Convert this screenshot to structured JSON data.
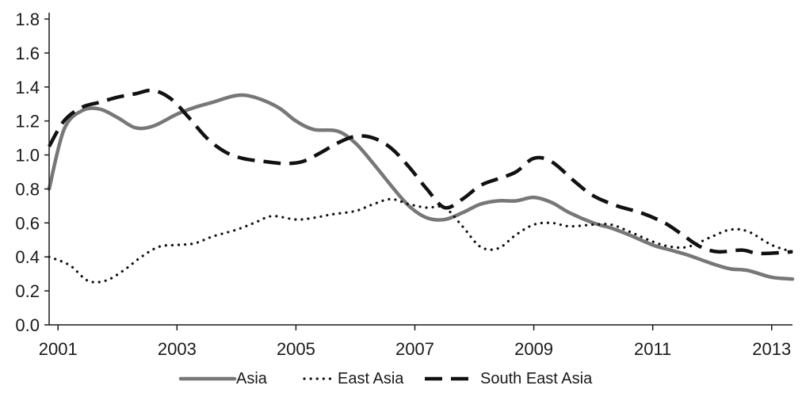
{
  "chart_data": {
    "type": "line",
    "title": "",
    "xlabel": "",
    "ylabel": "",
    "xlim": [
      2000.85,
      2013.35
    ],
    "ylim": [
      0,
      1.8
    ],
    "x_ticks": [
      2001,
      2003,
      2005,
      2007,
      2009,
      2011,
      2013
    ],
    "x_tick_labels": [
      "2001",
      "2003",
      "2005",
      "2007",
      "2009",
      "2011",
      "2013"
    ],
    "y_ticks": [
      0,
      0.2,
      0.4,
      0.6,
      0.8,
      1.0,
      1.2,
      1.4,
      1.6,
      1.8
    ],
    "y_tick_labels": [
      "0.0",
      "0.2",
      "0.4",
      "0.6",
      "0.8",
      "1.0",
      "1.2",
      "1.4",
      "1.6",
      "1.8"
    ],
    "grid": false,
    "legend_position": "bottom",
    "series": [
      {
        "name": "Asia",
        "color": "#777777",
        "style": "solid",
        "points": [
          [
            2000.85,
            0.8
          ],
          [
            2001.1,
            1.15
          ],
          [
            2001.4,
            1.26
          ],
          [
            2001.7,
            1.27
          ],
          [
            2002.0,
            1.22
          ],
          [
            2002.3,
            1.16
          ],
          [
            2002.6,
            1.17
          ],
          [
            2003.0,
            1.24
          ],
          [
            2003.3,
            1.28
          ],
          [
            2003.6,
            1.31
          ],
          [
            2004.0,
            1.35
          ],
          [
            2004.3,
            1.34
          ],
          [
            2004.7,
            1.28
          ],
          [
            2005.0,
            1.2
          ],
          [
            2005.3,
            1.15
          ],
          [
            2005.7,
            1.14
          ],
          [
            2006.0,
            1.07
          ],
          [
            2006.3,
            0.95
          ],
          [
            2006.6,
            0.82
          ],
          [
            2006.9,
            0.7
          ],
          [
            2007.2,
            0.63
          ],
          [
            2007.5,
            0.62
          ],
          [
            2007.8,
            0.66
          ],
          [
            2008.1,
            0.71
          ],
          [
            2008.4,
            0.73
          ],
          [
            2008.7,
            0.73
          ],
          [
            2009.0,
            0.75
          ],
          [
            2009.3,
            0.72
          ],
          [
            2009.6,
            0.66
          ],
          [
            2010.0,
            0.6
          ],
          [
            2010.3,
            0.57
          ],
          [
            2010.6,
            0.53
          ],
          [
            2011.0,
            0.47
          ],
          [
            2011.3,
            0.44
          ],
          [
            2011.6,
            0.41
          ],
          [
            2012.0,
            0.36
          ],
          [
            2012.3,
            0.33
          ],
          [
            2012.6,
            0.32
          ],
          [
            2013.0,
            0.28
          ],
          [
            2013.35,
            0.27
          ]
        ]
      },
      {
        "name": "East Asia",
        "color": "#111111",
        "style": "dotted",
        "points": [
          [
            2000.85,
            0.4
          ],
          [
            2001.2,
            0.35
          ],
          [
            2001.5,
            0.26
          ],
          [
            2001.8,
            0.26
          ],
          [
            2002.1,
            0.32
          ],
          [
            2002.4,
            0.4
          ],
          [
            2002.7,
            0.46
          ],
          [
            2003.0,
            0.47
          ],
          [
            2003.3,
            0.48
          ],
          [
            2003.6,
            0.52
          ],
          [
            2004.0,
            0.56
          ],
          [
            2004.3,
            0.6
          ],
          [
            2004.6,
            0.64
          ],
          [
            2005.0,
            0.62
          ],
          [
            2005.3,
            0.63
          ],
          [
            2005.6,
            0.65
          ],
          [
            2006.0,
            0.67
          ],
          [
            2006.3,
            0.71
          ],
          [
            2006.6,
            0.74
          ],
          [
            2006.9,
            0.71
          ],
          [
            2007.2,
            0.69
          ],
          [
            2007.5,
            0.69
          ],
          [
            2007.8,
            0.58
          ],
          [
            2008.1,
            0.46
          ],
          [
            2008.4,
            0.45
          ],
          [
            2008.7,
            0.53
          ],
          [
            2009.0,
            0.59
          ],
          [
            2009.3,
            0.6
          ],
          [
            2009.6,
            0.58
          ],
          [
            2010.0,
            0.59
          ],
          [
            2010.3,
            0.59
          ],
          [
            2010.6,
            0.55
          ],
          [
            2011.0,
            0.49
          ],
          [
            2011.3,
            0.46
          ],
          [
            2011.6,
            0.46
          ],
          [
            2012.0,
            0.52
          ],
          [
            2012.3,
            0.56
          ],
          [
            2012.6,
            0.55
          ],
          [
            2013.0,
            0.47
          ],
          [
            2013.35,
            0.43
          ]
        ]
      },
      {
        "name": "South East Asia",
        "color": "#111111",
        "style": "dashed",
        "points": [
          [
            2000.85,
            1.05
          ],
          [
            2001.1,
            1.2
          ],
          [
            2001.4,
            1.28
          ],
          [
            2001.7,
            1.31
          ],
          [
            2002.0,
            1.34
          ],
          [
            2002.3,
            1.36
          ],
          [
            2002.6,
            1.38
          ],
          [
            2002.9,
            1.33
          ],
          [
            2003.2,
            1.22
          ],
          [
            2003.5,
            1.1
          ],
          [
            2003.8,
            1.02
          ],
          [
            2004.1,
            0.98
          ],
          [
            2004.5,
            0.96
          ],
          [
            2004.8,
            0.95
          ],
          [
            2005.1,
            0.96
          ],
          [
            2005.4,
            1.01
          ],
          [
            2005.7,
            1.07
          ],
          [
            2006.0,
            1.11
          ],
          [
            2006.3,
            1.1
          ],
          [
            2006.6,
            1.04
          ],
          [
            2006.9,
            0.93
          ],
          [
            2007.2,
            0.8
          ],
          [
            2007.5,
            0.69
          ],
          [
            2007.8,
            0.74
          ],
          [
            2008.1,
            0.82
          ],
          [
            2008.4,
            0.86
          ],
          [
            2008.7,
            0.9
          ],
          [
            2009.0,
            0.98
          ],
          [
            2009.3,
            0.96
          ],
          [
            2009.7,
            0.84
          ],
          [
            2010.0,
            0.76
          ],
          [
            2010.4,
            0.7
          ],
          [
            2010.8,
            0.66
          ],
          [
            2011.2,
            0.6
          ],
          [
            2011.5,
            0.53
          ],
          [
            2011.8,
            0.46
          ],
          [
            2012.1,
            0.43
          ],
          [
            2012.5,
            0.44
          ],
          [
            2012.8,
            0.42
          ],
          [
            2013.35,
            0.43
          ]
        ]
      }
    ]
  }
}
